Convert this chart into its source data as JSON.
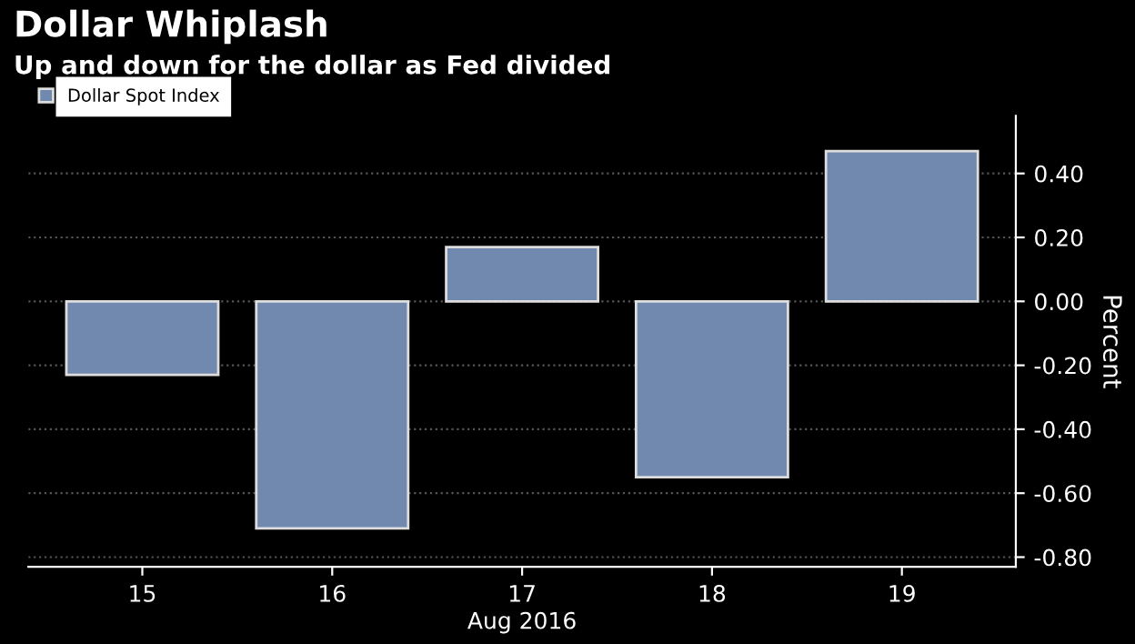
{
  "chart_data": {
    "type": "bar",
    "title": "Dollar Whiplash",
    "subtitle": "Up and down for the dollar as Fed divided",
    "categories": [
      "15",
      "16",
      "17",
      "18",
      "19"
    ],
    "xlabel": "Aug 2016",
    "ylabel": "Percent",
    "series": [
      {
        "name": "Dollar Spot Index",
        "color": "#7189ae",
        "values": [
          -0.23,
          -0.71,
          0.17,
          -0.55,
          0.47
        ]
      }
    ],
    "ylim": [
      -0.83,
      0.58
    ],
    "yticks": [
      {
        "value": 0.4,
        "label": "0.40"
      },
      {
        "value": 0.2,
        "label": "0.20"
      },
      {
        "value": 0,
        "label": "0.00"
      },
      {
        "value": -0.2,
        "label": "-0.20"
      },
      {
        "value": -0.4,
        "label": "-0.40"
      },
      {
        "value": -0.6,
        "label": "-0.60"
      },
      {
        "value": -0.8,
        "label": "-0.80"
      }
    ],
    "grid": "y",
    "legend": "top left"
  }
}
